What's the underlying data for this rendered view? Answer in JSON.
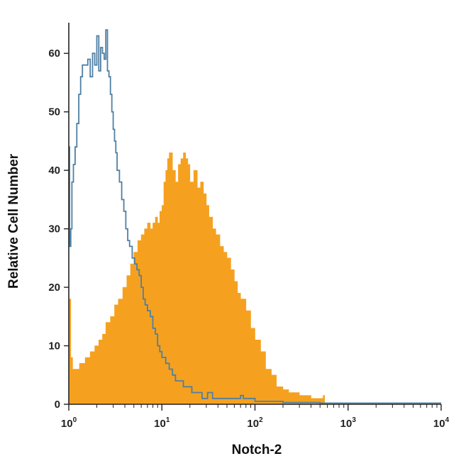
{
  "chart_data": {
    "type": "area",
    "xlabel": "Notch-2",
    "ylabel": "Relative Cell Number",
    "x_scale": "log",
    "xlim": [
      1,
      10000
    ],
    "ylim": [
      0,
      65
    ],
    "x_ticks": [
      {
        "value": 1,
        "base": "10",
        "exp": "0"
      },
      {
        "value": 10,
        "base": "10",
        "exp": "1"
      },
      {
        "value": 100,
        "base": "10",
        "exp": "2"
      },
      {
        "value": 1000,
        "base": "10",
        "exp": "3"
      },
      {
        "value": 10000,
        "base": "10",
        "exp": "4"
      }
    ],
    "y_ticks": [
      "0",
      "10",
      "20",
      "30",
      "40",
      "50",
      "60"
    ],
    "grid": false,
    "legend": "none",
    "series": [
      {
        "style": "filled",
        "color": "#F5A11F",
        "x": [
          1,
          1.05,
          1.1,
          1.2,
          1.3,
          1.4,
          1.5,
          1.7,
          1.9,
          2.1,
          2.3,
          2.5,
          2.8,
          3.1,
          3.4,
          3.8,
          4.2,
          4.6,
          5,
          5.5,
          6,
          6.5,
          7,
          7.5,
          8,
          8.5,
          9,
          9.5,
          10,
          10.5,
          11,
          11.5,
          12,
          13,
          14,
          15,
          16,
          17,
          18,
          19,
          20,
          22,
          24,
          26,
          28,
          30,
          32,
          35,
          38,
          42,
          46,
          50,
          55,
          60,
          65,
          70,
          80,
          90,
          100,
          115,
          130,
          150,
          170,
          200,
          230,
          260,
          300,
          350,
          400,
          450,
          500,
          540,
          560,
          600,
          700,
          800,
          1000,
          10000
        ],
        "y": [
          18,
          8,
          6,
          6,
          7,
          7,
          8,
          9,
          10,
          11,
          12,
          14,
          15,
          17,
          18,
          20,
          22,
          24,
          26,
          28,
          29,
          30,
          31,
          30,
          31,
          32,
          31,
          33,
          34,
          38,
          40,
          42,
          43,
          40,
          38,
          41,
          42,
          43,
          42,
          41,
          38,
          40,
          37,
          38,
          36,
          34,
          32,
          30,
          29,
          27,
          26,
          25,
          23,
          21,
          19,
          18,
          16,
          13,
          11,
          9,
          6,
          5,
          3,
          2.5,
          2,
          2,
          1.5,
          1.5,
          1,
          1,
          1,
          1.5,
          0,
          0,
          0,
          0,
          0,
          0
        ]
      },
      {
        "style": "outline",
        "color": "#4F7FA3",
        "x": [
          1,
          1.02,
          1.05,
          1.08,
          1.12,
          1.17,
          1.22,
          1.28,
          1.34,
          1.4,
          1.45,
          1.5,
          1.6,
          1.7,
          1.8,
          1.9,
          2,
          2.1,
          2.2,
          2.3,
          2.4,
          2.5,
          2.6,
          2.7,
          2.8,
          2.9,
          3,
          3.1,
          3.2,
          3.3,
          3.5,
          3.7,
          3.9,
          4.1,
          4.3,
          4.5,
          4.8,
          5.1,
          5.4,
          5.7,
          6,
          6.3,
          6.6,
          7,
          7.5,
          8,
          8.5,
          9,
          9.5,
          10,
          11,
          12,
          13,
          14,
          15,
          17,
          19,
          21,
          23,
          25,
          27,
          29,
          31,
          33,
          35,
          40,
          45,
          50,
          55,
          60,
          65,
          70,
          75,
          80,
          100,
          150,
          200,
          500,
          1000,
          10000
        ],
        "y": [
          44,
          27,
          30,
          38,
          41,
          44,
          48,
          53,
          56,
          58,
          58,
          58,
          59,
          56,
          60,
          58,
          63,
          57,
          61,
          60,
          59,
          64,
          57,
          56,
          53,
          50,
          47,
          45,
          43,
          40,
          38,
          35,
          33,
          30,
          28,
          27,
          25,
          24,
          23,
          22,
          20,
          18,
          17,
          16,
          15,
          13,
          12,
          10,
          9,
          8,
          7,
          6,
          5,
          4,
          4,
          3,
          3,
          2,
          2,
          2,
          1,
          1,
          2,
          2,
          1,
          1,
          1,
          1,
          1,
          1,
          1,
          1.5,
          1,
          1,
          0.5,
          0.5,
          0.3,
          0.2,
          0.2,
          0.2
        ]
      }
    ]
  }
}
